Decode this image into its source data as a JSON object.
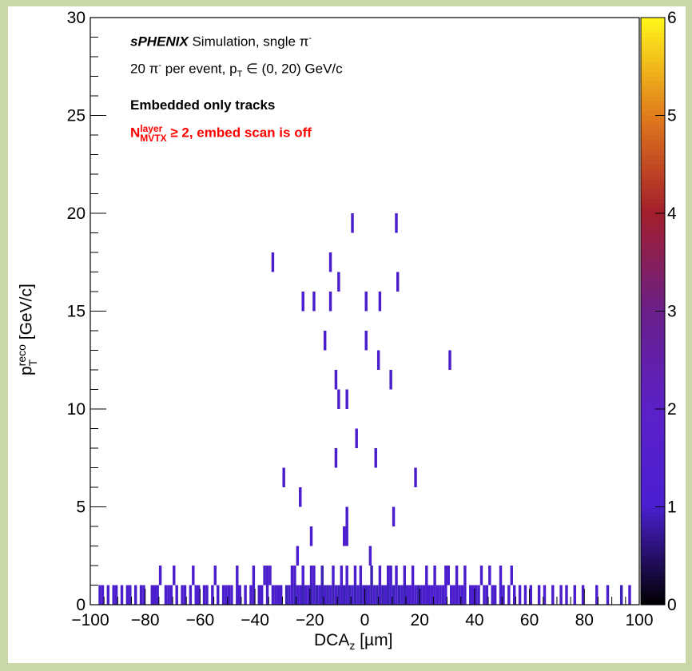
{
  "chart_data": {
    "type": "heatmap",
    "x": {
      "label": "DCA",
      "label_sub": "z",
      "label_unit": " [µm]",
      "range": [
        -100,
        100
      ],
      "ticks": [
        -100,
        -80,
        -60,
        -40,
        -20,
        0,
        20,
        40,
        60,
        80,
        100
      ]
    },
    "y": {
      "label": "p",
      "label_sup": "reco",
      "label_sub": "T",
      "label_unit": " [GeV/c]",
      "range": [
        0,
        30
      ],
      "ticks": [
        0,
        5,
        10,
        15,
        20,
        25,
        30
      ]
    },
    "z": {
      "range": [
        0,
        6
      ],
      "ticks": [
        0,
        1,
        2,
        3,
        4,
        5,
        6
      ],
      "palette": "ROOT kBird/kDarkBodyRadiator"
    },
    "annotations": {
      "line1_bold": "sPHENIX",
      "line1_rest": " Simulation, sngle π",
      "line1_sup": "-",
      "line2_a": "20 π",
      "line2_sup": "-",
      "line2_b": " per event, p",
      "line2_sub": "T",
      "line2_c": " ∈ (0, 20) GeV/c",
      "line3": "Embedded only tracks",
      "line4_a": "N",
      "line4_sup": "layer",
      "line4_sub": "MVTX",
      "line4_b": " ≥ 2, embed scan is off",
      "line4_color": "#ff0000"
    },
    "bins_high_pt": [
      {
        "x": -4.5,
        "y": 19.5,
        "z": 1
      },
      {
        "x": 11.5,
        "y": 19.5,
        "z": 1
      },
      {
        "x": -33.5,
        "y": 17.5,
        "z": 1
      },
      {
        "x": -12.5,
        "y": 17.5,
        "z": 1
      },
      {
        "x": -9.5,
        "y": 16.5,
        "z": 1
      },
      {
        "x": 12.0,
        "y": 16.5,
        "z": 1
      },
      {
        "x": -22.5,
        "y": 15.5,
        "z": 1
      },
      {
        "x": -18.5,
        "y": 15.5,
        "z": 1
      },
      {
        "x": -12.5,
        "y": 15.5,
        "z": 1
      },
      {
        "x": 0.5,
        "y": 15.5,
        "z": 1
      },
      {
        "x": 5.5,
        "y": 15.5,
        "z": 1
      },
      {
        "x": -14.5,
        "y": 13.5,
        "z": 1
      },
      {
        "x": 0.5,
        "y": 13.5,
        "z": 1
      },
      {
        "x": 5.0,
        "y": 12.5,
        "z": 1
      },
      {
        "x": 31.0,
        "y": 12.5,
        "z": 1
      },
      {
        "x": -10.5,
        "y": 11.5,
        "z": 1
      },
      {
        "x": 9.5,
        "y": 11.5,
        "z": 1
      },
      {
        "x": -9.5,
        "y": 10.5,
        "z": 1
      },
      {
        "x": -6.5,
        "y": 10.5,
        "z": 1
      },
      {
        "x": -3.0,
        "y": 8.5,
        "z": 1
      },
      {
        "x": -10.5,
        "y": 7.5,
        "z": 1
      },
      {
        "x": 4.0,
        "y": 7.5,
        "z": 1
      },
      {
        "x": -29.5,
        "y": 6.5,
        "z": 1
      },
      {
        "x": 18.5,
        "y": 6.5,
        "z": 1
      },
      {
        "x": -23.5,
        "y": 5.5,
        "z": 1
      },
      {
        "x": -6.5,
        "y": 4.5,
        "z": 1
      },
      {
        "x": 10.5,
        "y": 4.5,
        "z": 1
      },
      {
        "x": -19.5,
        "y": 3.5,
        "z": 1
      },
      {
        "x": -7.5,
        "y": 3.5,
        "z": 1
      },
      {
        "x": -6.5,
        "y": 3.5,
        "z": 1
      },
      {
        "x": -24.5,
        "y": 2.5,
        "z": 1
      },
      {
        "x": 2.0,
        "y": 2.5,
        "z": 1
      }
    ],
    "bins_row_1_2": [
      {
        "x": -74.5,
        "y": 1.5,
        "z": 1
      },
      {
        "x": -69.5,
        "y": 1.5,
        "z": 1
      },
      {
        "x": -62.5,
        "y": 1.5,
        "z": 1
      },
      {
        "x": -54.5,
        "y": 1.5,
        "z": 1
      },
      {
        "x": -46.5,
        "y": 1.5,
        "z": 1
      },
      {
        "x": -40.5,
        "y": 1.5,
        "z": 1
      },
      {
        "x": -36.5,
        "y": 1.5,
        "z": 1
      },
      {
        "x": -35.5,
        "y": 1.5,
        "z": 1
      },
      {
        "x": -34.5,
        "y": 1.5,
        "z": 1
      },
      {
        "x": -26.5,
        "y": 1.5,
        "z": 1
      },
      {
        "x": -25.5,
        "y": 1.5,
        "z": 1
      },
      {
        "x": -22.5,
        "y": 1.5,
        "z": 1
      },
      {
        "x": -19.5,
        "y": 1.5,
        "z": 1
      },
      {
        "x": -18.5,
        "y": 1.5,
        "z": 1
      },
      {
        "x": -15.5,
        "y": 1.5,
        "z": 2
      },
      {
        "x": -11.5,
        "y": 1.5,
        "z": 1
      },
      {
        "x": -8.5,
        "y": 1.5,
        "z": 1
      },
      {
        "x": -6.5,
        "y": 1.5,
        "z": 1
      },
      {
        "x": -3.5,
        "y": 1.5,
        "z": 1
      },
      {
        "x": -1.5,
        "y": 1.5,
        "z": 1
      },
      {
        "x": 2.5,
        "y": 1.5,
        "z": 2
      },
      {
        "x": 5.5,
        "y": 1.5,
        "z": 1
      },
      {
        "x": 8.5,
        "y": 1.5,
        "z": 1
      },
      {
        "x": 9.5,
        "y": 1.5,
        "z": 1
      },
      {
        "x": 11.5,
        "y": 1.5,
        "z": 1
      },
      {
        "x": 14.5,
        "y": 1.5,
        "z": 1
      },
      {
        "x": 17.5,
        "y": 1.5,
        "z": 1
      },
      {
        "x": 22.5,
        "y": 1.5,
        "z": 1
      },
      {
        "x": 25.5,
        "y": 1.5,
        "z": 1
      },
      {
        "x": 29.5,
        "y": 1.5,
        "z": 1
      },
      {
        "x": 30.5,
        "y": 1.5,
        "z": 1
      },
      {
        "x": 33.5,
        "y": 1.5,
        "z": 1
      },
      {
        "x": 36.5,
        "y": 1.5,
        "z": 1
      },
      {
        "x": 42.5,
        "y": 1.5,
        "z": 1
      },
      {
        "x": 45.5,
        "y": 1.5,
        "z": 1
      },
      {
        "x": 49.5,
        "y": 1.5,
        "z": 1
      },
      {
        "x": 53.5,
        "y": 1.5,
        "z": 1
      }
    ],
    "bins_row_0_1": [
      {
        "x": -96.5,
        "y": 0.5,
        "z": 1
      },
      {
        "x": -95.5,
        "y": 0.5,
        "z": 1
      },
      {
        "x": -93.5,
        "y": 0.5,
        "z": 1
      },
      {
        "x": -91.5,
        "y": 0.5,
        "z": 1
      },
      {
        "x": -90.5,
        "y": 0.5,
        "z": 1
      },
      {
        "x": -88.5,
        "y": 0.5,
        "z": 1
      },
      {
        "x": -86.5,
        "y": 0.5,
        "z": 1
      },
      {
        "x": -85.5,
        "y": 0.5,
        "z": 1
      },
      {
        "x": -83.5,
        "y": 0.5,
        "z": 1
      },
      {
        "x": -81.5,
        "y": 0.5,
        "z": 1
      },
      {
        "x": -80.5,
        "y": 0.5,
        "z": 1
      },
      {
        "x": -77.5,
        "y": 0.5,
        "z": 1
      },
      {
        "x": -76.5,
        "y": 0.5,
        "z": 1
      },
      {
        "x": -75.5,
        "y": 0.5,
        "z": 1
      },
      {
        "x": -72.5,
        "y": 0.5,
        "z": 1
      },
      {
        "x": -71.5,
        "y": 0.5,
        "z": 1
      },
      {
        "x": -70.5,
        "y": 0.5,
        "z": 1
      },
      {
        "x": -68.5,
        "y": 0.5,
        "z": 1
      },
      {
        "x": -66.5,
        "y": 0.5,
        "z": 1
      },
      {
        "x": -65.5,
        "y": 0.5,
        "z": 1
      },
      {
        "x": -63.5,
        "y": 0.5,
        "z": 1
      },
      {
        "x": -61.5,
        "y": 0.5,
        "z": 1
      },
      {
        "x": -60.5,
        "y": 0.5,
        "z": 1
      },
      {
        "x": -58.5,
        "y": 0.5,
        "z": 1
      },
      {
        "x": -57.5,
        "y": 0.5,
        "z": 1
      },
      {
        "x": -55.5,
        "y": 0.5,
        "z": 1
      },
      {
        "x": -53.5,
        "y": 0.5,
        "z": 1
      },
      {
        "x": -51.5,
        "y": 0.5,
        "z": 1
      },
      {
        "x": -50.5,
        "y": 0.5,
        "z": 1
      },
      {
        "x": -49.5,
        "y": 0.5,
        "z": 1
      },
      {
        "x": -48.5,
        "y": 0.5,
        "z": 1
      },
      {
        "x": -46.5,
        "y": 0.5,
        "z": 1
      },
      {
        "x": -45.5,
        "y": 0.5,
        "z": 1
      },
      {
        "x": -43.5,
        "y": 0.5,
        "z": 1
      },
      {
        "x": -41.5,
        "y": 0.5,
        "z": 1
      },
      {
        "x": -40.5,
        "y": 0.5,
        "z": 1
      },
      {
        "x": -38.5,
        "y": 0.5,
        "z": 1
      },
      {
        "x": -37.5,
        "y": 0.5,
        "z": 1
      },
      {
        "x": -35.5,
        "y": 0.5,
        "z": 1
      },
      {
        "x": -33.5,
        "y": 0.5,
        "z": 1
      },
      {
        "x": -32.5,
        "y": 0.5,
        "z": 1
      },
      {
        "x": -31.5,
        "y": 0.5,
        "z": 1
      },
      {
        "x": -30.5,
        "y": 0.5,
        "z": 1
      },
      {
        "x": -28.5,
        "y": 0.5,
        "z": 2
      },
      {
        "x": -27.5,
        "y": 0.5,
        "z": 1
      },
      {
        "x": -26.5,
        "y": 0.5,
        "z": 1
      },
      {
        "x": -25.5,
        "y": 0.5,
        "z": 2
      },
      {
        "x": -24.5,
        "y": 0.5,
        "z": 1
      },
      {
        "x": -23.5,
        "y": 0.5,
        "z": 1
      },
      {
        "x": -22.5,
        "y": 0.5,
        "z": 2
      },
      {
        "x": -21.5,
        "y": 0.5,
        "z": 1
      },
      {
        "x": -20.5,
        "y": 0.5,
        "z": 1
      },
      {
        "x": -19.5,
        "y": 0.5,
        "z": 2
      },
      {
        "x": -18.5,
        "y": 0.5,
        "z": 1
      },
      {
        "x": -17.5,
        "y": 0.5,
        "z": 2
      },
      {
        "x": -16.5,
        "y": 0.5,
        "z": 1
      },
      {
        "x": -15.5,
        "y": 0.5,
        "z": 2
      },
      {
        "x": -14.5,
        "y": 0.5,
        "z": 1
      },
      {
        "x": -13.5,
        "y": 0.5,
        "z": 2
      },
      {
        "x": -12.5,
        "y": 0.5,
        "z": 1
      },
      {
        "x": -11.5,
        "y": 0.5,
        "z": 2
      },
      {
        "x": -10.5,
        "y": 0.5,
        "z": 1
      },
      {
        "x": -9.5,
        "y": 0.5,
        "z": 2
      },
      {
        "x": -8.5,
        "y": 0.5,
        "z": 1
      },
      {
        "x": -7.5,
        "y": 0.5,
        "z": 2
      },
      {
        "x": -6.5,
        "y": 0.5,
        "z": 1
      },
      {
        "x": -5.5,
        "y": 0.5,
        "z": 2
      },
      {
        "x": -4.5,
        "y": 0.5,
        "z": 1
      },
      {
        "x": -3.5,
        "y": 0.5,
        "z": 2
      },
      {
        "x": -2.5,
        "y": 0.5,
        "z": 1
      },
      {
        "x": -1.5,
        "y": 0.5,
        "z": 2
      },
      {
        "x": -0.5,
        "y": 0.5,
        "z": 1
      },
      {
        "x": 0.5,
        "y": 0.5,
        "z": 2
      },
      {
        "x": 1.5,
        "y": 0.5,
        "z": 1
      },
      {
        "x": 2.5,
        "y": 0.5,
        "z": 2
      },
      {
        "x": 3.5,
        "y": 0.5,
        "z": 1
      },
      {
        "x": 4.5,
        "y": 0.5,
        "z": 2
      },
      {
        "x": 5.5,
        "y": 0.5,
        "z": 1
      },
      {
        "x": 6.5,
        "y": 0.5,
        "z": 2
      },
      {
        "x": 7.5,
        "y": 0.5,
        "z": 1
      },
      {
        "x": 8.5,
        "y": 0.5,
        "z": 2
      },
      {
        "x": 9.5,
        "y": 0.5,
        "z": 1
      },
      {
        "x": 10.5,
        "y": 0.5,
        "z": 2
      },
      {
        "x": 11.5,
        "y": 0.5,
        "z": 1
      },
      {
        "x": 12.5,
        "y": 0.5,
        "z": 2
      },
      {
        "x": 13.5,
        "y": 0.5,
        "z": 1
      },
      {
        "x": 14.5,
        "y": 0.5,
        "z": 2
      },
      {
        "x": 15.5,
        "y": 0.5,
        "z": 1
      },
      {
        "x": 16.5,
        "y": 0.5,
        "z": 1
      },
      {
        "x": 17.5,
        "y": 0.5,
        "z": 1
      },
      {
        "x": 18.5,
        "y": 0.5,
        "z": 1
      },
      {
        "x": 19.5,
        "y": 0.5,
        "z": 2
      },
      {
        "x": 20.5,
        "y": 0.5,
        "z": 1
      },
      {
        "x": 21.5,
        "y": 0.5,
        "z": 1
      },
      {
        "x": 22.5,
        "y": 0.5,
        "z": 1
      },
      {
        "x": 23.5,
        "y": 0.5,
        "z": 1
      },
      {
        "x": 24.5,
        "y": 0.5,
        "z": 1
      },
      {
        "x": 25.5,
        "y": 0.5,
        "z": 1
      },
      {
        "x": 26.5,
        "y": 0.5,
        "z": 1
      },
      {
        "x": 27.5,
        "y": 0.5,
        "z": 1
      },
      {
        "x": 28.5,
        "y": 0.5,
        "z": 1
      },
      {
        "x": 29.5,
        "y": 0.5,
        "z": 1
      },
      {
        "x": 31.5,
        "y": 0.5,
        "z": 1
      },
      {
        "x": 32.5,
        "y": 0.5,
        "z": 1
      },
      {
        "x": 33.5,
        "y": 0.5,
        "z": 1
      },
      {
        "x": 34.5,
        "y": 0.5,
        "z": 1
      },
      {
        "x": 35.5,
        "y": 0.5,
        "z": 1
      },
      {
        "x": 36.5,
        "y": 0.5,
        "z": 1
      },
      {
        "x": 38.5,
        "y": 0.5,
        "z": 1
      },
      {
        "x": 39.5,
        "y": 0.5,
        "z": 1
      },
      {
        "x": 40.5,
        "y": 0.5,
        "z": 1
      },
      {
        "x": 41.5,
        "y": 0.5,
        "z": 1
      },
      {
        "x": 43.5,
        "y": 0.5,
        "z": 1
      },
      {
        "x": 44.5,
        "y": 0.5,
        "z": 1
      },
      {
        "x": 46.5,
        "y": 0.5,
        "z": 1
      },
      {
        "x": 47.5,
        "y": 0.5,
        "z": 1
      },
      {
        "x": 49.5,
        "y": 0.5,
        "z": 1
      },
      {
        "x": 50.5,
        "y": 0.5,
        "z": 1
      },
      {
        "x": 52.5,
        "y": 0.5,
        "z": 1
      },
      {
        "x": 54.5,
        "y": 0.5,
        "z": 1
      },
      {
        "x": 56.5,
        "y": 0.5,
        "z": 1
      },
      {
        "x": 58.5,
        "y": 0.5,
        "z": 1
      },
      {
        "x": 60.5,
        "y": 0.5,
        "z": 1
      },
      {
        "x": 63.5,
        "y": 0.5,
        "z": 1
      },
      {
        "x": 65.5,
        "y": 0.5,
        "z": 1
      },
      {
        "x": 68.5,
        "y": 0.5,
        "z": 1
      },
      {
        "x": 71.5,
        "y": 0.5,
        "z": 1
      },
      {
        "x": 73.5,
        "y": 0.5,
        "z": 1
      },
      {
        "x": 76.5,
        "y": 0.5,
        "z": 1
      },
      {
        "x": 79.5,
        "y": 0.5,
        "z": 1
      },
      {
        "x": 84.5,
        "y": 0.5,
        "z": 1
      },
      {
        "x": 88.5,
        "y": 0.5,
        "z": 1
      },
      {
        "x": 93.5,
        "y": 0.5,
        "z": 2
      },
      {
        "x": 96.5,
        "y": 0.5,
        "z": 1
      }
    ],
    "grid": false,
    "legend": "none (color scale at right)"
  }
}
